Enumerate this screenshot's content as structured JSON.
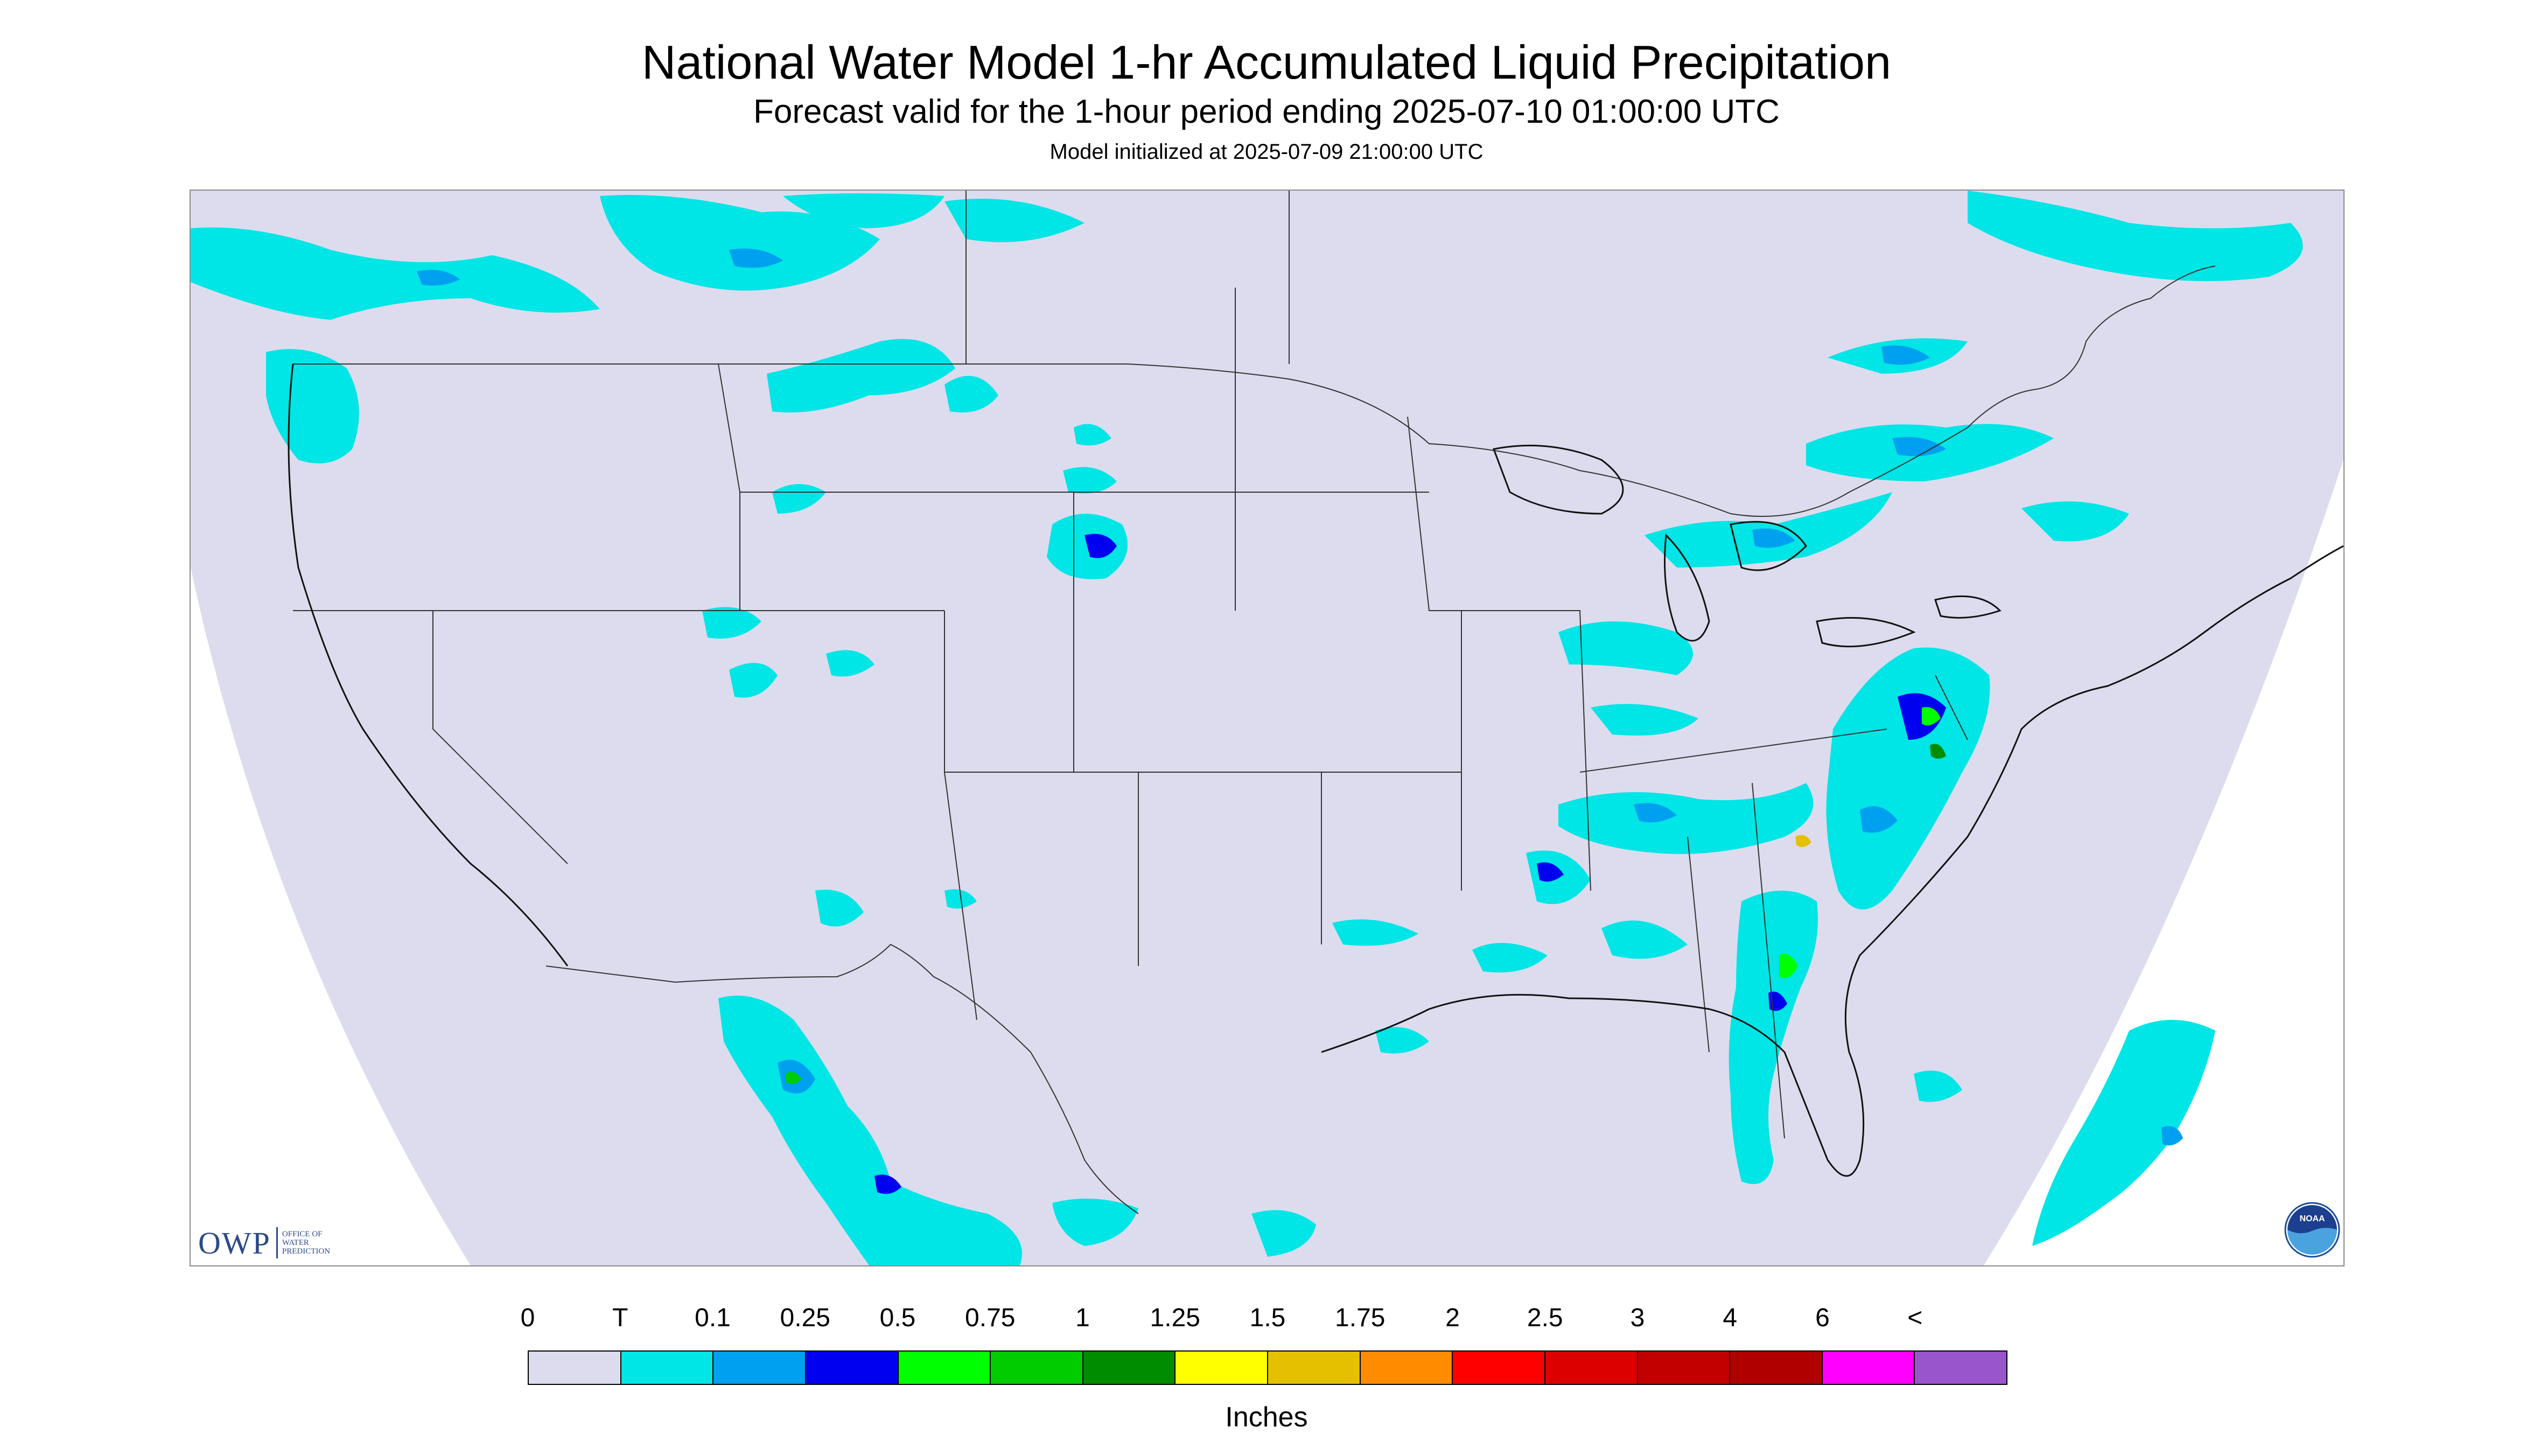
{
  "header": {
    "title": "National Water Model 1-hr Accumulated Liquid Precipitation",
    "subtitle": "Forecast valid for the 1-hour period ending 2025-07-10 01:00:00 UTC",
    "init_line": "Model initialized at 2025-07-09 21:00:00 UTC"
  },
  "map": {
    "domain_fill": "#dcdcee",
    "outside_fill": "#ffffff",
    "boundary_color": "#333333",
    "coast_color": "#111111"
  },
  "legend": {
    "labels": [
      "0",
      "T",
      "0.1",
      "0.25",
      "0.5",
      "0.75",
      "1",
      "1.25",
      "1.5",
      "1.75",
      "2",
      "2.5",
      "3",
      "4",
      "6",
      "<"
    ],
    "colors": [
      "#dcdcee",
      "#00e5e5",
      "#00a0f0",
      "#0000f0",
      "#00ff00",
      "#00cc00",
      "#008c00",
      "#ffff00",
      "#e5c000",
      "#ff8c00",
      "#ff0000",
      "#dd0000",
      "#c20000",
      "#b00000",
      "#ff00ff",
      "#9955cc"
    ],
    "unit": "Inches"
  },
  "logos": {
    "owp_letters": "OWP",
    "owp_subtext": [
      "OFFICE OF",
      "WATER",
      "PREDICTION"
    ],
    "noaa_text": "NOAA"
  },
  "precip_areas": [
    {
      "region": "Pacific Northwest / British Columbia",
      "category": "T"
    },
    {
      "region": "Montana / Alberta / Saskatchewan",
      "category": "T"
    },
    {
      "region": "South Dakota",
      "category": "0.25"
    },
    {
      "region": "Virginia / Maryland",
      "category": "0.5"
    },
    {
      "region": "North Carolina",
      "category": "1.5"
    },
    {
      "region": "South Carolina coast",
      "category": "0.5"
    },
    {
      "region": "Florida",
      "category": "T"
    },
    {
      "region": "Sierra Madre Occidental, Mexico",
      "category": "0.75"
    },
    {
      "region": "Great Lakes / Quebec",
      "category": "0.1"
    },
    {
      "region": "Tennessee / Alabama",
      "category": "0.25"
    }
  ]
}
